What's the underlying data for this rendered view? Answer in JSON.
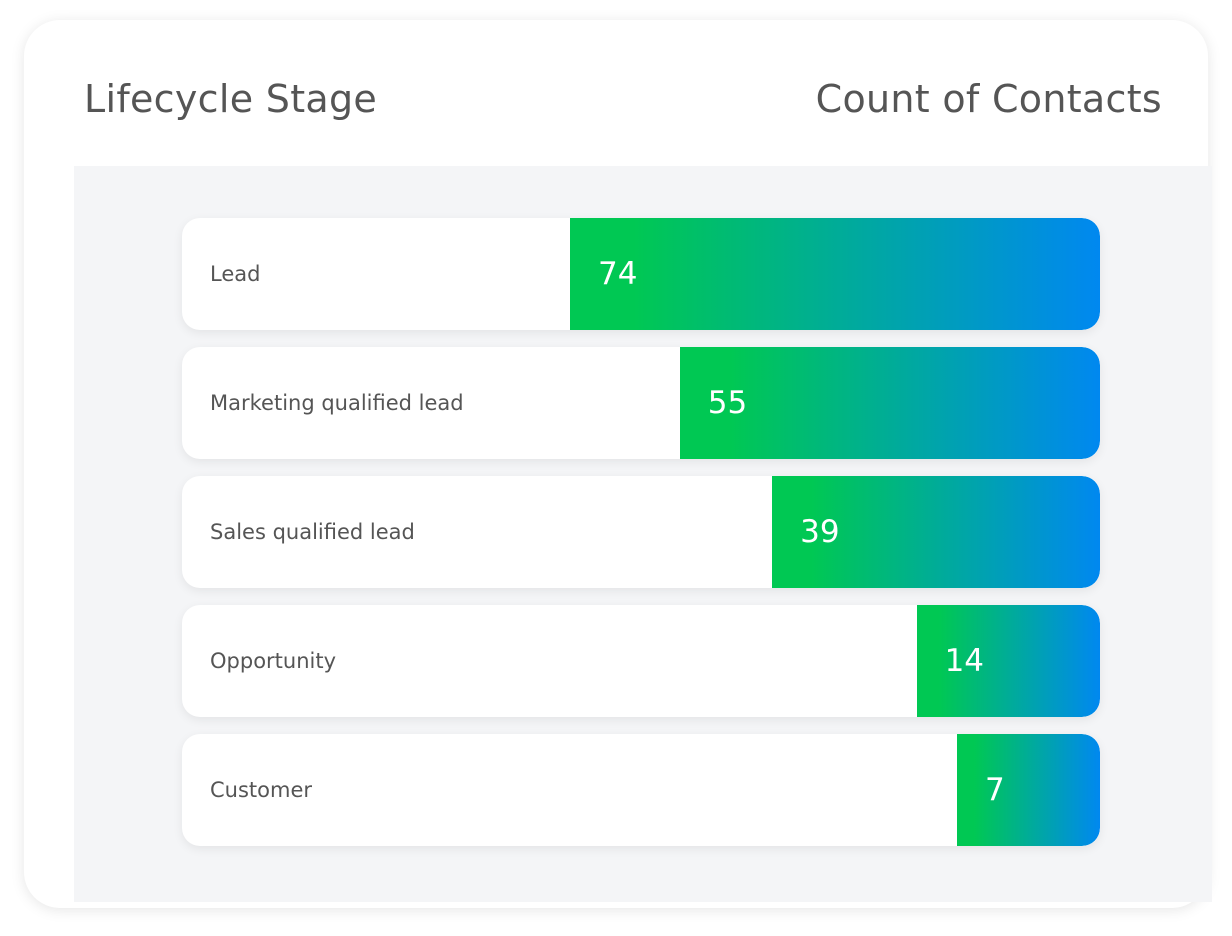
{
  "header": {
    "left_title": "Lifecycle Stage",
    "right_title": "Count of Contacts"
  },
  "colors": {
    "bar_start": "#00c853",
    "bar_end": "#0088f0"
  },
  "chart_data": {
    "type": "bar",
    "orientation": "horizontal",
    "categories": [
      "Lead",
      "Marketing qualified lead",
      "Sales qualified lead",
      "Opportunity",
      "Customer"
    ],
    "values": [
      74,
      55,
      39,
      14,
      7
    ],
    "data_labels": [
      "74",
      "55",
      "39",
      "14",
      "7"
    ],
    "xlabel": "Count of Contacts",
    "ylabel": "Lifecycle Stage",
    "grid": false,
    "legend": "none"
  }
}
